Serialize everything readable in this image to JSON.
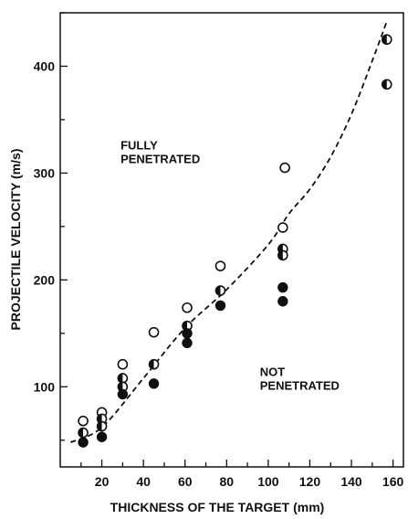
{
  "chart_data": {
    "type": "scatter",
    "xlabel": "THICKNESS OF THE TARGET (mm)",
    "ylabel": "PROJECTILE VELOCITY (m/s)",
    "xlim": [
      0,
      165
    ],
    "ylim": [
      25,
      450
    ],
    "xticks": [
      20,
      40,
      60,
      80,
      100,
      120,
      140,
      160
    ],
    "yticks": [
      100,
      200,
      300,
      400
    ],
    "annotations": [
      {
        "lines": [
          "FULLY",
          "PENETRATED"
        ],
        "x": 29,
        "y": 322
      },
      {
        "lines": [
          "NOT",
          "PENETRATED"
        ],
        "x": 96,
        "y": 110
      }
    ],
    "series": [
      {
        "marker": "open-circle",
        "points": [
          [
            11,
            68
          ],
          [
            20,
            76
          ],
          [
            30,
            121
          ],
          [
            45,
            151
          ],
          [
            61,
            174
          ],
          [
            77,
            213
          ],
          [
            107,
            249
          ],
          [
            108,
            305
          ]
        ]
      },
      {
        "marker": "half-filled-circle",
        "points": [
          [
            11,
            57
          ],
          [
            20,
            70
          ],
          [
            20,
            63
          ],
          [
            30,
            108
          ],
          [
            30,
            100
          ],
          [
            45,
            121
          ],
          [
            61,
            157
          ],
          [
            77,
            190
          ],
          [
            107,
            229
          ],
          [
            107,
            223
          ],
          [
            157,
            425
          ],
          [
            157,
            383
          ]
        ]
      },
      {
        "marker": "filled-circle",
        "points": [
          [
            11,
            48
          ],
          [
            20,
            53
          ],
          [
            30,
            93
          ],
          [
            45,
            103
          ],
          [
            61,
            141
          ],
          [
            61,
            150
          ],
          [
            77,
            176
          ],
          [
            107,
            193
          ],
          [
            107,
            180
          ]
        ]
      }
    ],
    "boundary": {
      "style": "dashed",
      "x": [
        5,
        20,
        40,
        60,
        80,
        100,
        110,
        120,
        130,
        140,
        150,
        157
      ],
      "y": [
        48,
        62,
        108,
        155,
        191,
        233,
        262,
        285,
        315,
        355,
        405,
        442
      ]
    },
    "grid": false
  }
}
